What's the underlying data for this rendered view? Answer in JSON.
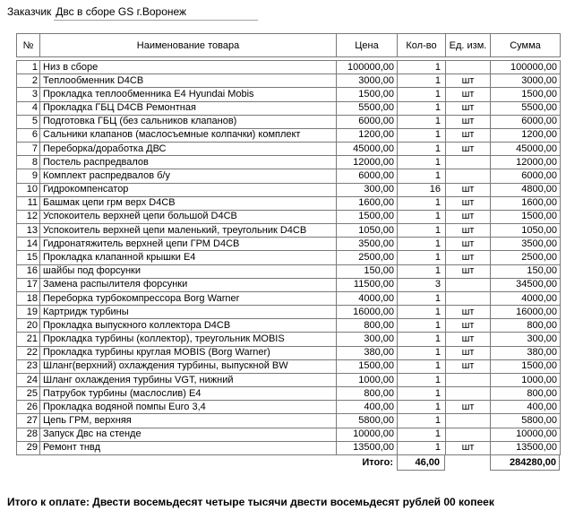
{
  "page": {
    "customer_label": "Заказчик",
    "customer_value": "Двс в сборе GS г.Воронеж"
  },
  "table": {
    "headers": {
      "num": "№",
      "name": "Наименование товара",
      "price": "Цена",
      "qty": "Кол-во",
      "unit": "Ед. изм.",
      "sum": "Сумма"
    },
    "rows": [
      {
        "num": "1",
        "name": "Низ в сборе",
        "price": "100000,00",
        "qty": "1",
        "unit": "",
        "sum": "100000,00"
      },
      {
        "num": "2",
        "name": "Теплообменник D4CB",
        "price": "3000,00",
        "qty": "1",
        "unit": "шт",
        "sum": "3000,00"
      },
      {
        "num": "3",
        "name": "Прокладка теплообменника E4 Hyundai Mobis",
        "price": "1500,00",
        "qty": "1",
        "unit": "шт",
        "sum": "1500,00"
      },
      {
        "num": "4",
        "name": "Прокладка ГБЦ D4CB Ремонтная",
        "price": "5500,00",
        "qty": "1",
        "unit": "шт",
        "sum": "5500,00"
      },
      {
        "num": "5",
        "name": "Подготовка ГБЦ (без сальников клапанов)",
        "price": "6000,00",
        "qty": "1",
        "unit": "шт",
        "sum": "6000,00"
      },
      {
        "num": "6",
        "name": "Сальники клапанов (маслосъемные колпачки) комплект",
        "price": "1200,00",
        "qty": "1",
        "unit": "шт",
        "sum": "1200,00"
      },
      {
        "num": "7",
        "name": "Переборка/доработка ДВС",
        "price": "45000,00",
        "qty": "1",
        "unit": "шт",
        "sum": "45000,00"
      },
      {
        "num": "8",
        "name": "Постель распредвалов",
        "price": "12000,00",
        "qty": "1",
        "unit": "",
        "sum": "12000,00"
      },
      {
        "num": "9",
        "name": "Комплект распредвалов б/у",
        "price": "6000,00",
        "qty": "1",
        "unit": "",
        "sum": "6000,00"
      },
      {
        "num": "10",
        "name": "Гидрокомпенсатор",
        "price": "300,00",
        "qty": "16",
        "unit": "шт",
        "sum": "4800,00"
      },
      {
        "num": "11",
        "name": "Башмак цепи грм верх D4CB",
        "price": "1600,00",
        "qty": "1",
        "unit": "шт",
        "sum": "1600,00"
      },
      {
        "num": "12",
        "name": "Успокоитель верхней цепи большой D4CB",
        "price": "1500,00",
        "qty": "1",
        "unit": "шт",
        "sum": "1500,00"
      },
      {
        "num": "13",
        "name": "Успокоитель верхней цепи маленький, треугольник D4CB",
        "price": "1050,00",
        "qty": "1",
        "unit": "шт",
        "sum": "1050,00"
      },
      {
        "num": "14",
        "name": "Гидронатяжитель верхней цепи ГРМ D4CB",
        "price": "3500,00",
        "qty": "1",
        "unit": "шт",
        "sum": "3500,00"
      },
      {
        "num": "15",
        "name": "Прокладка клапанной крышки E4",
        "price": "2500,00",
        "qty": "1",
        "unit": "шт",
        "sum": "2500,00"
      },
      {
        "num": "16",
        "name": "шайбы под форсунки",
        "price": "150,00",
        "qty": "1",
        "unit": "шт",
        "sum": "150,00"
      },
      {
        "num": "17",
        "name": "Замена распылителя форсунки",
        "price": "11500,00",
        "qty": "3",
        "unit": "",
        "sum": "34500,00"
      },
      {
        "num": "18",
        "name": "Переборка турбокомпрессора Borg Warner",
        "price": "4000,00",
        "qty": "1",
        "unit": "",
        "sum": "4000,00"
      },
      {
        "num": "19",
        "name": "Картридж турбины",
        "price": "16000,00",
        "qty": "1",
        "unit": "шт",
        "sum": "16000,00"
      },
      {
        "num": "20",
        "name": "Прокладка выпускного коллектора D4CB",
        "price": "800,00",
        "qty": "1",
        "unit": "шт",
        "sum": "800,00"
      },
      {
        "num": "21",
        "name": "Прокладка турбины (коллектор), треугольник MOBIS",
        "price": "300,00",
        "qty": "1",
        "unit": "шт",
        "sum": "300,00"
      },
      {
        "num": "22",
        "name": "Прокладка турбины круглая MOBIS (Borg Warner)",
        "price": "380,00",
        "qty": "1",
        "unit": "шт",
        "sum": "380,00"
      },
      {
        "num": "23",
        "name": "Шланг(верхний) охлаждения турбины, выпускной BW",
        "price": "1500,00",
        "qty": "1",
        "unit": "шт",
        "sum": "1500,00"
      },
      {
        "num": "24",
        "name": "Шланг охлаждения турбины VGT, нижний",
        "price": "1000,00",
        "qty": "1",
        "unit": "",
        "sum": "1000,00"
      },
      {
        "num": "25",
        "name": "Патрубок турбины (маслослив) E4",
        "price": "800,00",
        "qty": "1",
        "unit": "",
        "sum": "800,00"
      },
      {
        "num": "26",
        "name": "Прокладка водяной помпы Euro 3,4",
        "price": "400,00",
        "qty": "1",
        "unit": "шт",
        "sum": "400,00"
      },
      {
        "num": "27",
        "name": "Цепь ГРМ, верхняя",
        "price": "5800,00",
        "qty": "1",
        "unit": "",
        "sum": "5800,00"
      },
      {
        "num": "28",
        "name": "Запуск Двс на стенде",
        "price": "10000,00",
        "qty": "1",
        "unit": "",
        "sum": "10000,00"
      },
      {
        "num": "29",
        "name": "Ремонт тнвд",
        "price": "13500,00",
        "qty": "1",
        "unit": "шт",
        "sum": "13500,00"
      }
    ],
    "totals": {
      "label": "Итого:",
      "qty": "46,00",
      "sum": "284280,00"
    }
  },
  "footer": {
    "text": "Итого к оплате: Двести восемьдесят четыре тысячи двести восемьдесят рублей 00 копеек"
  }
}
